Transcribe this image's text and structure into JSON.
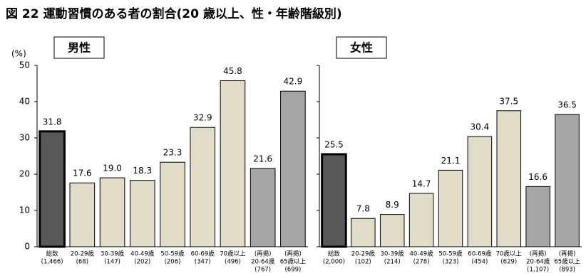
{
  "title": "図 22 運動習慣のある者の割合(20 歳以上、性・年齢階級別)",
  "y_unit": "(%)",
  "chart_data": [
    {
      "type": "bar",
      "title": "男性",
      "categories": [
        [
          "総数",
          "(1,466)"
        ],
        [
          "20-29歳",
          "(68)"
        ],
        [
          "30-39歳",
          "(147)"
        ],
        [
          "40-49歳",
          "(202)"
        ],
        [
          "50-59歳",
          "(206)"
        ],
        [
          "60-69歳",
          "(347)"
        ],
        [
          "70歳以上",
          "(496)"
        ],
        [
          "(再掲)",
          "20-64歳",
          "(767)"
        ],
        [
          "(再掲)",
          "65歳以上",
          "(699)"
        ]
      ],
      "values": [
        31.8,
        17.6,
        19.0,
        18.3,
        23.3,
        32.9,
        45.8,
        21.6,
        42.9
      ],
      "value_labels": [
        "31.8",
        "17.6",
        "19.0",
        "18.3",
        "23.3",
        "32.9",
        "45.8",
        "21.6",
        "42.9"
      ],
      "colors": [
        "#595959",
        "#e0dcc8",
        "#e0dcc8",
        "#e0dcc8",
        "#e0dcc8",
        "#e0dcc8",
        "#e0dcc8",
        "#a6a6a6",
        "#a6a6a6"
      ],
      "ylim": [
        0,
        50
      ],
      "yticks": [
        0,
        10,
        20,
        30,
        40,
        50
      ]
    },
    {
      "type": "bar",
      "title": "女性",
      "categories": [
        [
          "総数",
          "(2,000)"
        ],
        [
          "20-29歳",
          "(102)"
        ],
        [
          "30-39歳",
          "(214)"
        ],
        [
          "40-49歳",
          "(278)"
        ],
        [
          "50-59歳",
          "(323)"
        ],
        [
          "60-69歳",
          "(454)"
        ],
        [
          "70歳以上",
          "(629)"
        ],
        [
          "(再掲)",
          "20-64歳",
          "(1,107)"
        ],
        [
          "(再掲)",
          "65歳以上",
          "(893)"
        ]
      ],
      "values": [
        25.5,
        7.8,
        8.9,
        14.7,
        21.1,
        30.4,
        37.5,
        16.6,
        36.5
      ],
      "value_labels": [
        "25.5",
        "7.8",
        "8.9",
        "14.7",
        "21.1",
        "30.4",
        "37.5",
        "16.6",
        "36.5"
      ],
      "colors": [
        "#595959",
        "#e0dcc8",
        "#e0dcc8",
        "#e0dcc8",
        "#e0dcc8",
        "#e0dcc8",
        "#e0dcc8",
        "#a6a6a6",
        "#a6a6a6"
      ],
      "ylim": [
        0,
        50
      ],
      "yticks": [
        0,
        10,
        20,
        30,
        40,
        50
      ]
    }
  ]
}
